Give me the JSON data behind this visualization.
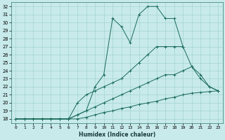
{
  "xlabel": "Humidex (Indice chaleur)",
  "xlim": [
    -0.5,
    23.5
  ],
  "ylim": [
    17.5,
    32.5
  ],
  "yticks": [
    18,
    19,
    20,
    21,
    22,
    23,
    24,
    25,
    26,
    27,
    28,
    29,
    30,
    31,
    32
  ],
  "xticks": [
    0,
    1,
    2,
    3,
    4,
    5,
    6,
    7,
    8,
    9,
    10,
    11,
    12,
    13,
    14,
    15,
    16,
    17,
    18,
    19,
    20,
    21,
    22,
    23
  ],
  "background_color": "#c8eaea",
  "grid_color": "#9ecece",
  "line_color": "#1a6b5a",
  "lines": [
    {
      "x": [
        0,
        1,
        2,
        3,
        4,
        5,
        6,
        7,
        8,
        9,
        10,
        11,
        12,
        13,
        14,
        15,
        16,
        17,
        18,
        19
      ],
      "y": [
        18,
        18,
        18,
        18,
        18,
        18,
        18,
        18.5,
        19,
        22,
        23.5,
        30.5,
        29.5,
        27.5,
        31,
        32,
        32,
        30.5,
        30.5,
        27
      ]
    },
    {
      "x": [
        0,
        1,
        2,
        3,
        4,
        5,
        6,
        7,
        8,
        9,
        10,
        11,
        12,
        13,
        14,
        15,
        16,
        17,
        18,
        19,
        20,
        21,
        22,
        23
      ],
      "y": [
        18,
        18,
        18,
        18,
        18,
        18,
        18,
        20,
        21,
        21.5,
        22,
        22.5,
        23,
        24,
        25,
        26,
        27,
        27,
        27,
        27,
        24.5,
        23,
        22,
        21.5
      ]
    },
    {
      "x": [
        0,
        1,
        2,
        3,
        4,
        5,
        6,
        7,
        8,
        9,
        10,
        11,
        12,
        13,
        14,
        15,
        16,
        17,
        18,
        19,
        20,
        21,
        22,
        23
      ],
      "y": [
        18,
        18,
        18,
        18,
        18,
        18,
        18,
        18.5,
        19,
        19.5,
        20,
        20.5,
        21,
        21.5,
        22,
        22.5,
        23,
        23.5,
        23.5,
        24,
        24.5,
        23.5,
        22,
        21.5
      ]
    },
    {
      "x": [
        0,
        1,
        2,
        3,
        4,
        5,
        6,
        7,
        8,
        9,
        10,
        11,
        12,
        13,
        14,
        15,
        16,
        17,
        18,
        19,
        20,
        21,
        22,
        23
      ],
      "y": [
        18,
        18,
        18,
        18,
        18,
        18,
        18,
        18,
        18.2,
        18.5,
        18.8,
        19,
        19.3,
        19.5,
        19.8,
        20,
        20.2,
        20.5,
        20.7,
        21,
        21.2,
        21.3,
        21.4,
        21.5
      ]
    }
  ]
}
